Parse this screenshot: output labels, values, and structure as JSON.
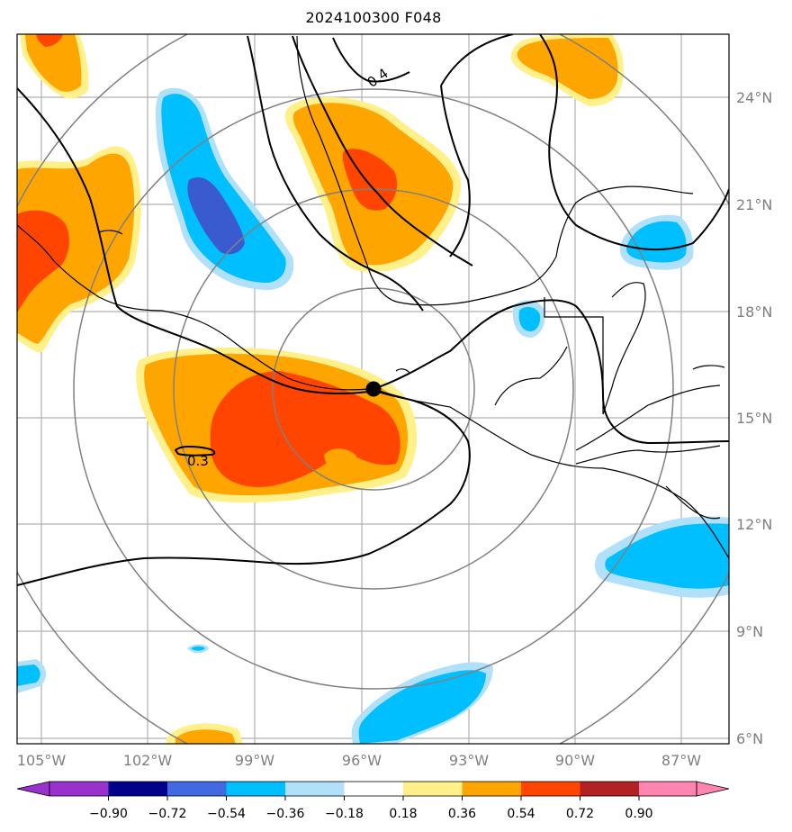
{
  "title": "2024100300 F048",
  "map": {
    "lat_labels": [
      "24°N",
      "21°N",
      "18°N",
      "15°N",
      "12°N",
      "9°N",
      "6°N"
    ],
    "lon_labels": [
      "105°W",
      "102°W",
      "99°W",
      "96°W",
      "93°W",
      "90°W",
      "87°W"
    ],
    "contour_labels": [
      "0.4",
      "0.3"
    ],
    "center_marker": "storm-center",
    "colors": {
      "c1": "#fff08a",
      "c2": "#ffa500",
      "c3": "#ff4500",
      "b1": "#b0e0fa",
      "b2": "#00bfff",
      "b3": "#3a5bd0",
      "range_ring": "#808080",
      "grid": "#b0b0b0"
    }
  },
  "colorbar": {
    "ticks": [
      "−0.90",
      "−0.72",
      "−0.54",
      "−0.36",
      "−0.18",
      "0.18",
      "0.36",
      "0.54",
      "0.72",
      "0.90"
    ],
    "colors": [
      "#9932cc",
      "#00008b",
      "#4169e1",
      "#00bfff",
      "#b0e0fa",
      "#ffffff",
      "#fff08a",
      "#ffa500",
      "#ff4500",
      "#b22222",
      "#ff85b0"
    ]
  }
}
